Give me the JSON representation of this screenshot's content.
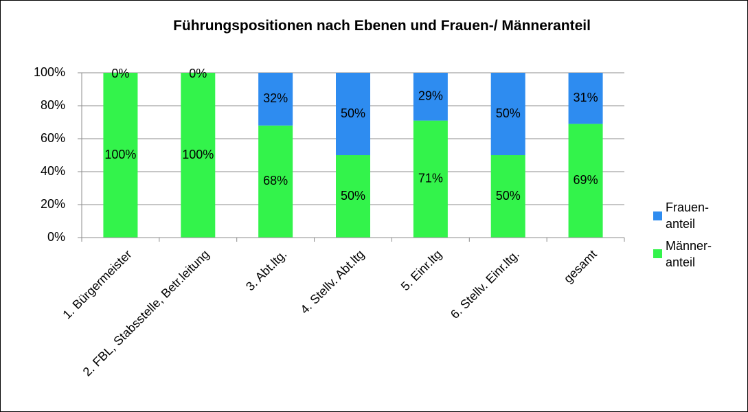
{
  "chart_data": {
    "type": "stacked_bar",
    "title": "Führungspositionen nach Ebenen und Frauen-/ Männeranteil",
    "categories": [
      "1. Bürgermeister",
      "2. FBL, Stabsstelle, Betr.leitung",
      "3. Abt.ltg.",
      "4. Stellv. Abt.ltg",
      "5. Einr.ltg",
      "6. Stellv. Einr.ltg.",
      "gesamt"
    ],
    "series": [
      {
        "name": "Männer-anteil",
        "color": "#33f34b",
        "values": [
          100,
          100,
          68,
          50,
          71,
          50,
          69
        ],
        "value_labels": [
          "100%",
          "100%",
          "68%",
          "50%",
          "71%",
          "50%",
          "69%"
        ]
      },
      {
        "name": "Frauen-anteil",
        "color": "#2e8cf0",
        "values": [
          0,
          0,
          32,
          50,
          29,
          50,
          31
        ],
        "value_labels": [
          "0%",
          "0%",
          "32%",
          "50%",
          "29%",
          "50%",
          "31%"
        ]
      }
    ],
    "ylim": [
      0,
      100
    ],
    "yticks": [
      {
        "value": 0,
        "label": "0%"
      },
      {
        "value": 20,
        "label": "20%"
      },
      {
        "value": 40,
        "label": "40%"
      },
      {
        "value": 60,
        "label": "60%"
      },
      {
        "value": 80,
        "label": "80%"
      },
      {
        "value": 100,
        "label": "100%"
      }
    ],
    "grid": true,
    "legend": "right"
  }
}
